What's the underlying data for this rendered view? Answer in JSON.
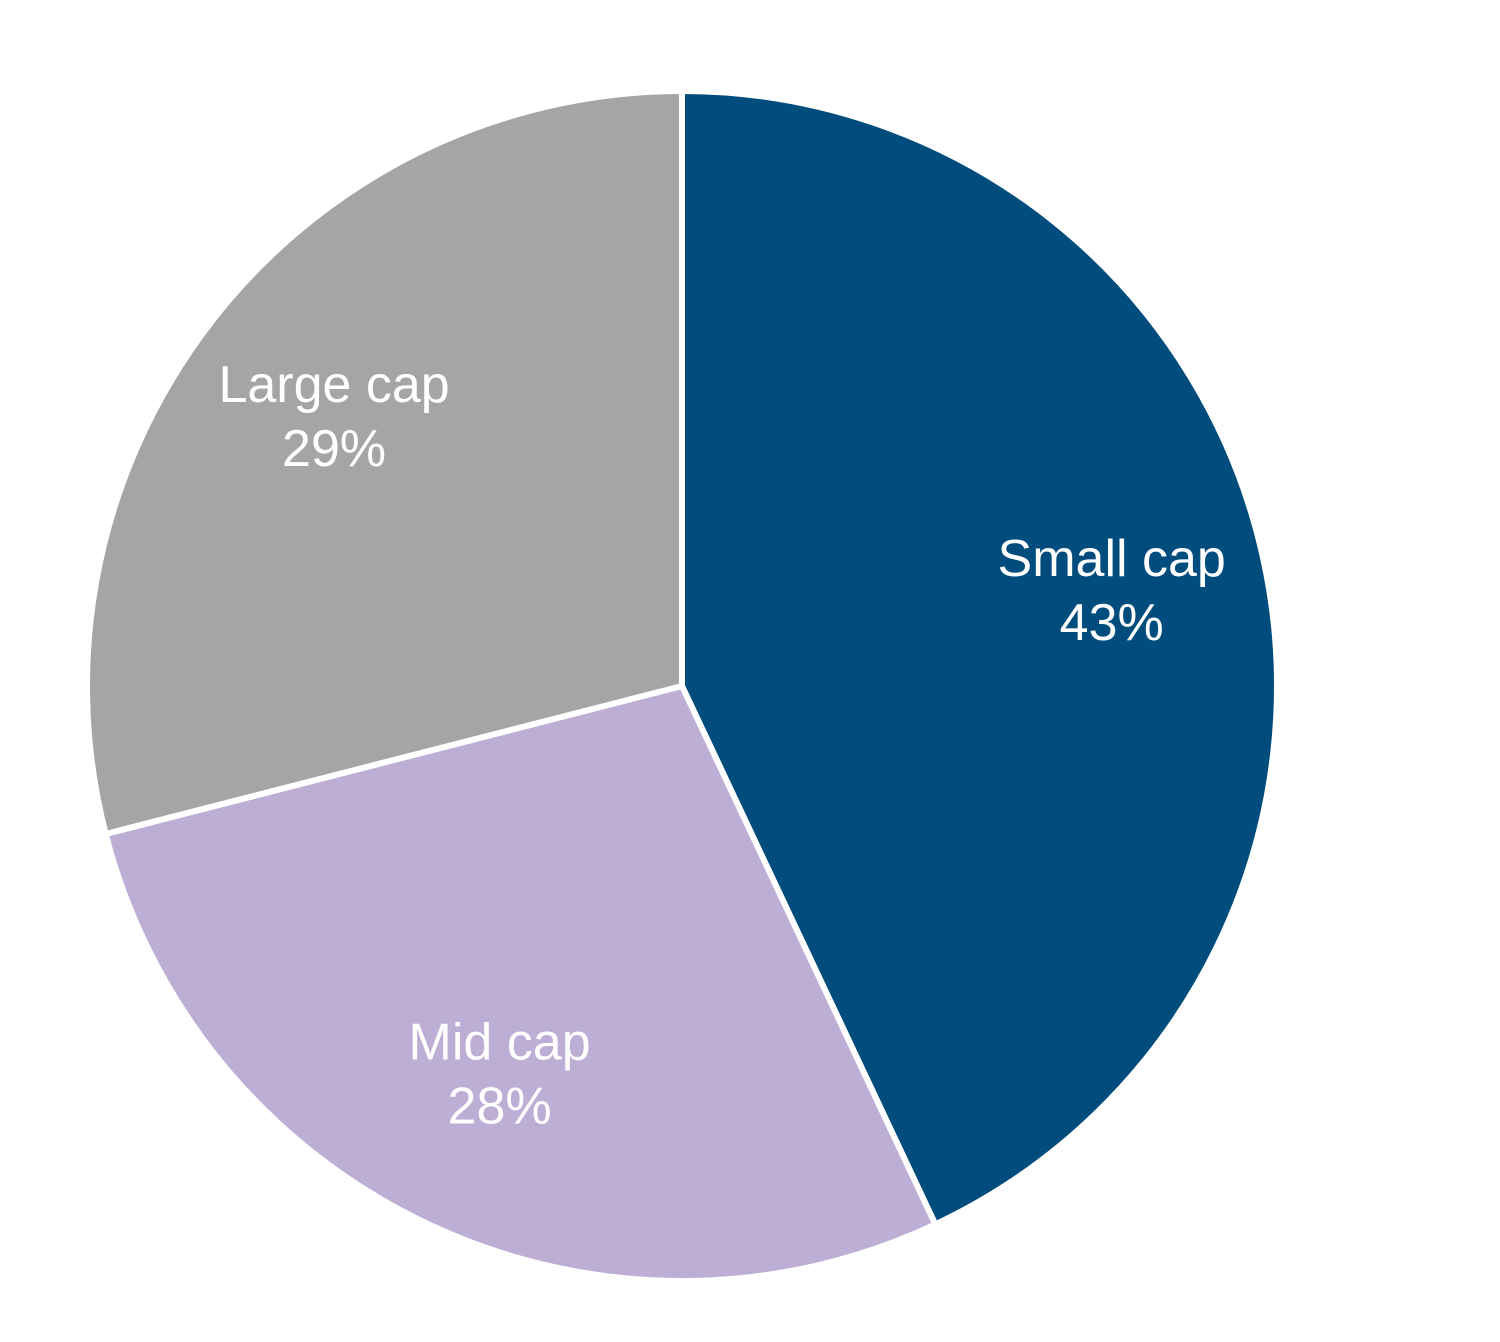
{
  "chart_data": {
    "type": "pie",
    "title": "",
    "legend": "none",
    "slices": [
      {
        "label": "Small cap",
        "value": 43,
        "value_label": "43%",
        "color": "#004C7C"
      },
      {
        "label": "Mid cap",
        "value": 28,
        "value_label": "28%",
        "color": "#BCAED4"
      },
      {
        "label": "Large cap",
        "value": 29,
        "value_label": "29%",
        "color": "#A5A5A5"
      }
    ]
  }
}
